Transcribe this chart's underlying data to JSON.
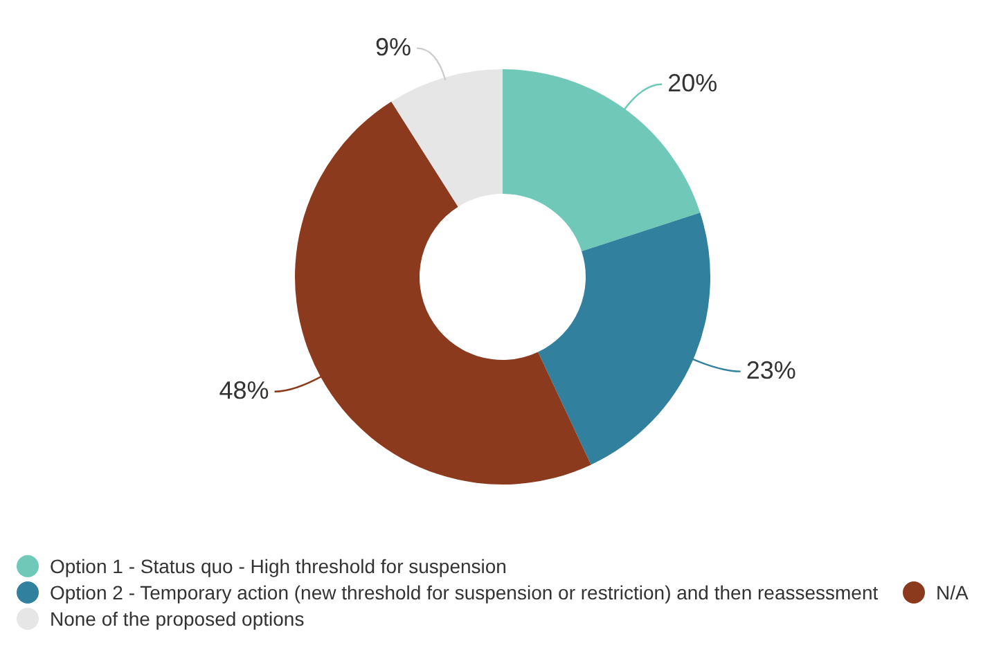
{
  "chart_data": {
    "type": "donut",
    "categories": [
      "Option 1 - Status quo - High threshold for suspension",
      "Option 2 - Temporary action (new threshold for suspension or restriction) and then reassessment",
      "N/A",
      "None of the proposed options"
    ],
    "values": [
      20,
      23,
      48,
      9
    ],
    "value_labels": [
      "20%",
      "23%",
      "48%",
      "9%"
    ],
    "colors": [
      "#6fc8b8",
      "#31809e",
      "#8b3a1e",
      "#e6e6e6"
    ],
    "legend": "bottom"
  }
}
